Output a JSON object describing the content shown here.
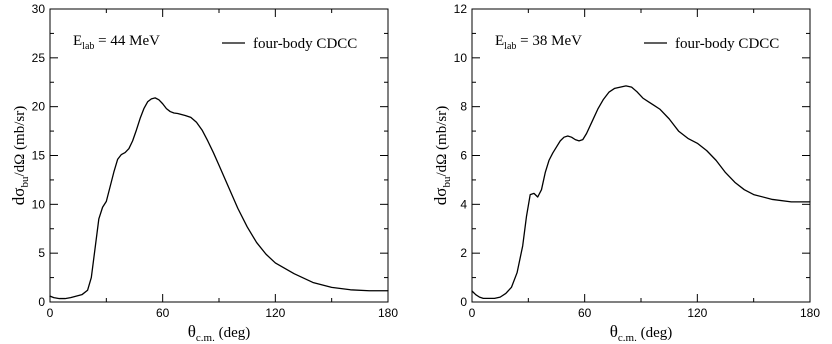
{
  "chart_data": [
    {
      "type": "line",
      "annotation": {
        "main": "E",
        "sub": "lab",
        "rest": " = 44 MeV"
      },
      "xlabel": {
        "main": "θ",
        "sub": "c.m.",
        "rest": "  (deg)"
      },
      "ylabel": {
        "pre": "dσ",
        "sub": "bu",
        "rest": "/dΩ  (mb/sr)"
      },
      "xlim": [
        0,
        180
      ],
      "ylim": [
        0,
        30
      ],
      "xticks": [
        0,
        60,
        120,
        180
      ],
      "yticks": [
        0,
        5,
        10,
        15,
        20,
        25,
        30
      ],
      "xtick_labels": [
        "0",
        "60",
        "120",
        "180"
      ],
      "ytick_labels": [
        "0",
        "5",
        "10",
        "15",
        "20",
        "25",
        "30"
      ],
      "legend_position": "top-right",
      "series": [
        {
          "name": "four-body CDCC",
          "x": [
            0,
            2,
            5,
            8,
            11,
            14,
            17,
            20,
            22,
            24,
            26,
            28,
            30,
            32,
            34,
            36,
            38,
            40,
            42,
            44,
            46,
            48,
            50,
            52,
            54,
            56,
            58,
            60,
            62,
            64,
            66,
            68,
            70,
            72,
            75,
            78,
            81,
            84,
            87,
            90,
            95,
            100,
            105,
            110,
            115,
            120,
            130,
            140,
            150,
            160,
            170,
            175,
            180
          ],
          "y": [
            0.6,
            0.45,
            0.35,
            0.35,
            0.45,
            0.6,
            0.75,
            1.2,
            2.5,
            5.5,
            8.5,
            9.7,
            10.3,
            11.8,
            13.3,
            14.6,
            15.1,
            15.3,
            15.7,
            16.5,
            17.6,
            18.8,
            19.8,
            20.5,
            20.8,
            20.9,
            20.7,
            20.3,
            19.8,
            19.5,
            19.35,
            19.3,
            19.2,
            19.1,
            18.9,
            18.4,
            17.6,
            16.5,
            15.3,
            14.0,
            11.8,
            9.6,
            7.7,
            6.1,
            4.9,
            4.0,
            2.9,
            2.0,
            1.5,
            1.25,
            1.15,
            1.15,
            1.15
          ]
        }
      ]
    },
    {
      "type": "line",
      "annotation": {
        "main": "E",
        "sub": "lab",
        "rest": " = 38 MeV"
      },
      "xlabel": {
        "main": "θ",
        "sub": "c.m.",
        "rest": "  (deg)"
      },
      "ylabel": {
        "pre": "dσ",
        "sub": "bu",
        "rest": "/dΩ  (mb/sr)"
      },
      "xlim": [
        0,
        180
      ],
      "ylim": [
        0,
        12
      ],
      "xticks": [
        0,
        60,
        120,
        180
      ],
      "yticks": [
        0,
        2,
        4,
        6,
        8,
        10,
        12
      ],
      "xtick_labels": [
        "0",
        "60",
        "120",
        "180"
      ],
      "ytick_labels": [
        "0",
        "2",
        "4",
        "6",
        "8",
        "10",
        "12"
      ],
      "legend_position": "top-right",
      "series": [
        {
          "name": "four-body CDCC",
          "x": [
            0,
            2,
            4,
            6,
            9,
            12,
            15,
            18,
            21,
            24,
            27,
            29,
            31,
            33,
            35,
            37,
            39,
            41,
            43,
            45,
            47,
            49,
            51,
            53,
            55,
            57,
            59,
            61,
            64,
            67,
            70,
            73,
            76,
            79,
            82,
            85,
            88,
            91,
            94,
            97,
            100,
            105,
            110,
            115,
            120,
            125,
            130,
            135,
            140,
            145,
            150,
            160,
            170,
            175,
            180
          ],
          "y": [
            0.45,
            0.3,
            0.2,
            0.15,
            0.15,
            0.15,
            0.2,
            0.35,
            0.6,
            1.2,
            2.3,
            3.5,
            4.4,
            4.45,
            4.3,
            4.6,
            5.3,
            5.8,
            6.1,
            6.35,
            6.6,
            6.75,
            6.8,
            6.75,
            6.65,
            6.6,
            6.65,
            6.9,
            7.4,
            7.9,
            8.3,
            8.6,
            8.75,
            8.8,
            8.85,
            8.8,
            8.6,
            8.35,
            8.2,
            8.05,
            7.9,
            7.5,
            7.0,
            6.7,
            6.5,
            6.2,
            5.8,
            5.3,
            4.9,
            4.6,
            4.4,
            4.2,
            4.1,
            4.1,
            4.1
          ]
        }
      ]
    }
  ]
}
